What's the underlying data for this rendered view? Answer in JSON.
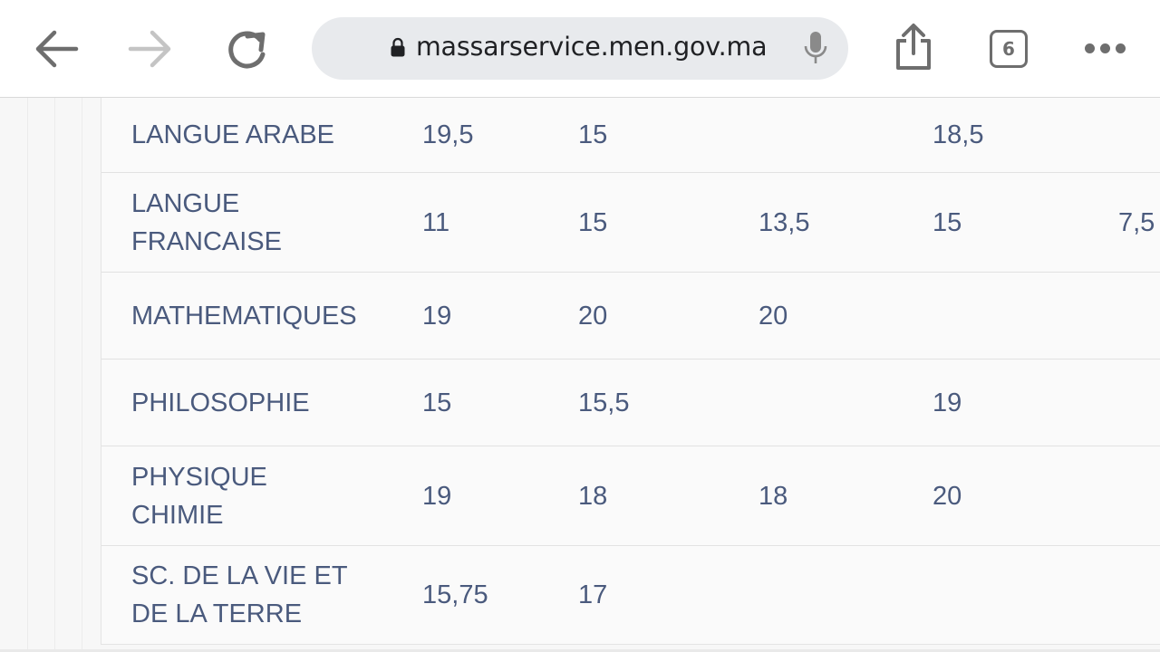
{
  "browser": {
    "url": "massarservice.men.gov.ma",
    "tab_count": "6"
  },
  "grades": {
    "rows": [
      {
        "subject": "LANGUE ARABE",
        "c1": "19,5",
        "c2": "15",
        "c3": "",
        "c4": "18,5",
        "c5": ""
      },
      {
        "subject": "LANGUE FRANCAISE",
        "c1": "11",
        "c2": "15",
        "c3": "13,5",
        "c4": "15",
        "c5": "7,5"
      },
      {
        "subject": "MATHEMATIQUES",
        "c1": "19",
        "c2": "20",
        "c3": "20",
        "c4": "",
        "c5": ""
      },
      {
        "subject": "PHILOSOPHIE",
        "c1": "15",
        "c2": "15,5",
        "c3": "",
        "c4": "19",
        "c5": ""
      },
      {
        "subject": "PHYSIQUE CHIMIE",
        "c1": "19",
        "c2": "18",
        "c3": "18",
        "c4": "20",
        "c5": ""
      },
      {
        "subject": "SC. DE LA VIE ET DE LA TERRE",
        "c1": "15,75",
        "c2": "17",
        "c3": "",
        "c4": "",
        "c5": ""
      }
    ]
  }
}
